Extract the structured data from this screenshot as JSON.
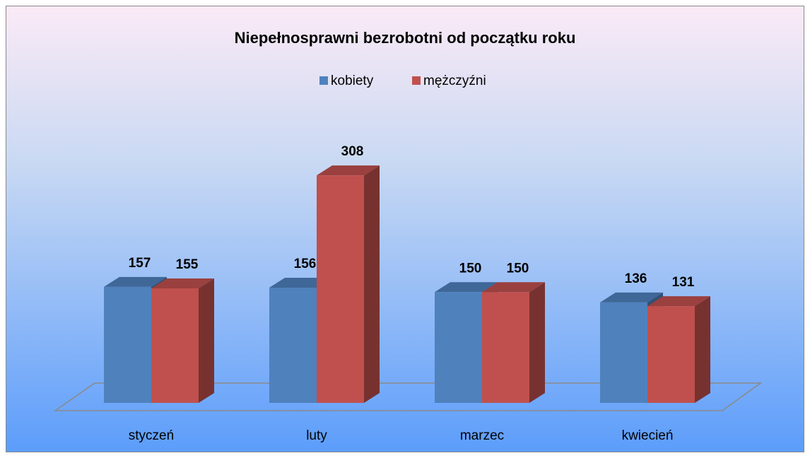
{
  "chart_data": {
    "type": "bar3d",
    "title": "Niepełnosprawni bezrobotni od początku roku",
    "categories": [
      "styczeń",
      "luty",
      "marzec",
      "kwiecień"
    ],
    "series": [
      {
        "name": "kobiety",
        "color": "#4f81bd",
        "values": [
          157,
          156,
          150,
          136
        ]
      },
      {
        "name": "mężczyźni",
        "color": "#c0504d",
        "values": [
          155,
          308,
          150,
          131
        ]
      }
    ],
    "legend": "top"
  }
}
